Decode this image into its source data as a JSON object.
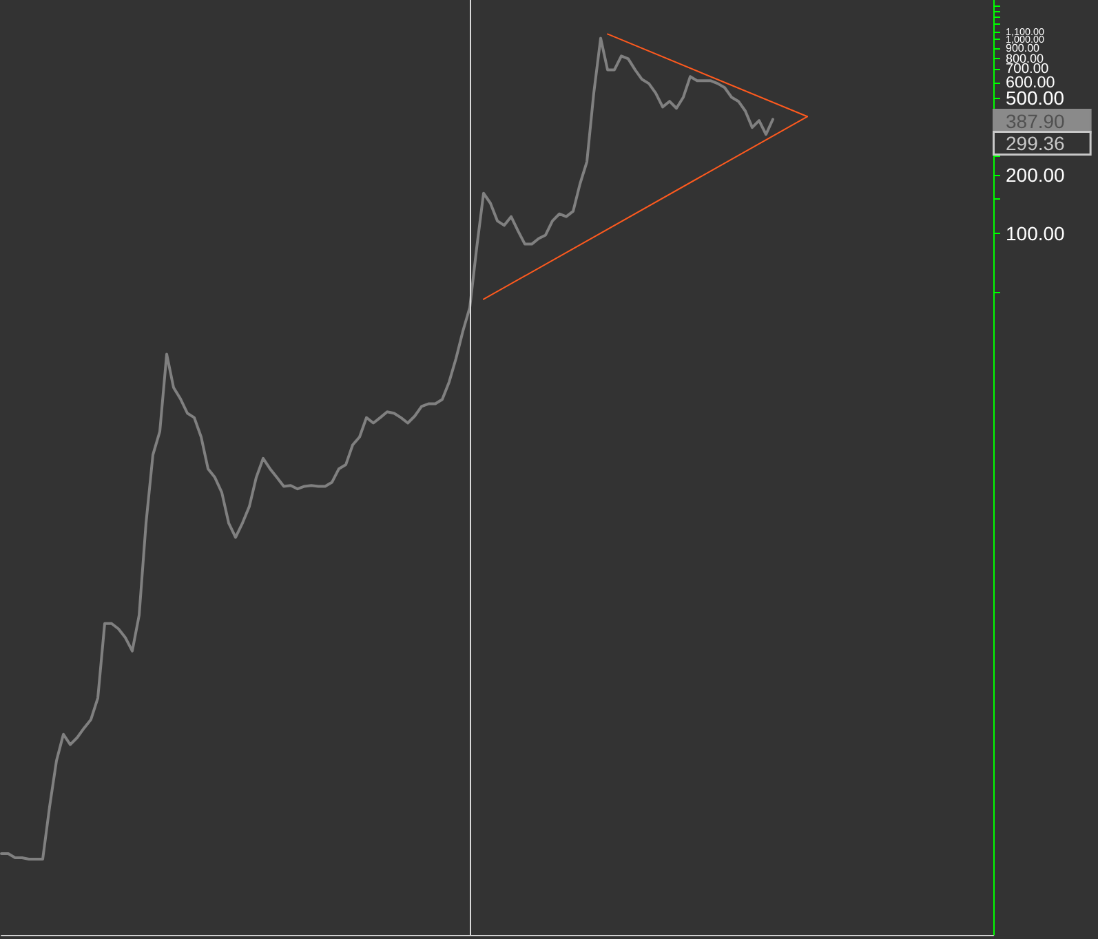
{
  "chart_data": {
    "type": "line",
    "categories": [
      null,
      null,
      null,
      null,
      null,
      null,
      null,
      null,
      null,
      null,
      null,
      null,
      null,
      null,
      null,
      null,
      null,
      null,
      null,
      null,
      null,
      null,
      null,
      null,
      null,
      null,
      null,
      null,
      null,
      null,
      null,
      null,
      null,
      null,
      null,
      null,
      null,
      null,
      null,
      null,
      null,
      null,
      null,
      null,
      null,
      null,
      null,
      null,
      null,
      null,
      null,
      null,
      null,
      null,
      null,
      null,
      null,
      null,
      null,
      null,
      null,
      null,
      null,
      null,
      null,
      null,
      null,
      null,
      null,
      null,
      null,
      null,
      null,
      null,
      null,
      null,
      null,
      null,
      null,
      null,
      null,
      null,
      null,
      null,
      null,
      null,
      null,
      null,
      null,
      null,
      null,
      null,
      null,
      null,
      null,
      null,
      null,
      null,
      null,
      null,
      null,
      null,
      null,
      null,
      null,
      null,
      null,
      null,
      null,
      null,
      null,
      null,
      null,
      null,
      null,
      null,
      null,
      null,
      null,
      null,
      null,
      null,
      null,
      null,
      null,
      null,
      null,
      null,
      null,
      null,
      null,
      null,
      null,
      null,
      null,
      null,
      null,
      null,
      null,
      null,
      null,
      null,
      null,
      null,
      null
    ],
    "series": [
      {
        "color": "#808080",
        "values": [
          0.063,
          0.063,
          0.06,
          0.06,
          0.059,
          0.059,
          0.059,
          0.11,
          0.19,
          0.26,
          0.23,
          0.25,
          0.28,
          0.31,
          0.4,
          0.97,
          0.97,
          0.91,
          0.82,
          0.7,
          1.07,
          3.2,
          7.2,
          9.5,
          23.8,
          16,
          14,
          11.8,
          11.2,
          8.9,
          6.1,
          5.5,
          4.6,
          3.2,
          2.7,
          3.2,
          3.9,
          5.5,
          6.9,
          6.1,
          5.5,
          4.95,
          5,
          4.8,
          4.95,
          5,
          4.95,
          4.95,
          5.2,
          6.1,
          6.4,
          8.1,
          8.9,
          11.2,
          10.5,
          11.2,
          12,
          11.8,
          11.2,
          10.5,
          11.4,
          12.8,
          13.2,
          13.2,
          13.9,
          17.1,
          22.6,
          31.3,
          41.4,
          84,
          161,
          143,
          116,
          110,
          122,
          103,
          88,
          88,
          94,
          98,
          116,
          126,
          122,
          130,
          180,
          234,
          529,
          1016,
          698,
          698,
          822,
          796,
          698,
          623,
          593,
          529,
          449,
          480,
          442,
          504,
          644,
          613,
          613,
          613,
          593,
          565,
          504,
          480,
          428,
          352,
          382,
          324,
          387.9,
          null,
          null,
          null,
          null,
          null,
          null,
          null,
          null,
          null,
          null,
          null,
          null,
          null,
          null,
          null,
          null,
          null,
          null,
          null,
          null,
          null,
          null,
          null,
          null,
          null,
          null,
          null,
          null,
          null,
          null,
          null,
          null
        ]
      },
      {
        "color": "#ff5a1e",
        "values": [
          null,
          null,
          null,
          null,
          null,
          null,
          null,
          null,
          null,
          null,
          null,
          null,
          null,
          null,
          null,
          null,
          null,
          null,
          null,
          null,
          null,
          null,
          null,
          null,
          null,
          null,
          null,
          null,
          null,
          null,
          null,
          null,
          null,
          null,
          null,
          null,
          null,
          null,
          null,
          null,
          null,
          null,
          null,
          null,
          null,
          null,
          null,
          null,
          null,
          null,
          null,
          null,
          null,
          null,
          null,
          null,
          null,
          null,
          null,
          null,
          null,
          null,
          null,
          null,
          null,
          null,
          null,
          null,
          null,
          null,
          45.7,
          null,
          null,
          null,
          null,
          null,
          null,
          null,
          null,
          null,
          null,
          null,
          null,
          null,
          null,
          null,
          null,
          null,
          null,
          null,
          null,
          null,
          null,
          null,
          null,
          null,
          null,
          null,
          null,
          null,
          null,
          null,
          null,
          null,
          null,
          null,
          null,
          null,
          null,
          null,
          null,
          null,
          null,
          null,
          null,
          null,
          null,
          400.7,
          null,
          null,
          null,
          null,
          null,
          null,
          null,
          null,
          null,
          null,
          null,
          null,
          null,
          null,
          null,
          null,
          null,
          null,
          null,
          null,
          null,
          null,
          null,
          null,
          null,
          null,
          null
        ]
      },
      {
        "color": "#ff5a1e",
        "values": [
          null,
          null,
          null,
          null,
          null,
          null,
          null,
          null,
          null,
          null,
          null,
          null,
          null,
          null,
          null,
          null,
          null,
          null,
          null,
          null,
          null,
          null,
          null,
          null,
          null,
          null,
          null,
          null,
          null,
          null,
          null,
          null,
          null,
          null,
          null,
          null,
          null,
          null,
          null,
          null,
          null,
          null,
          null,
          null,
          null,
          null,
          null,
          null,
          null,
          null,
          null,
          null,
          null,
          null,
          null,
          null,
          null,
          null,
          null,
          null,
          null,
          null,
          null,
          null,
          null,
          null,
          null,
          null,
          null,
          null,
          null,
          null,
          null,
          null,
          null,
          null,
          null,
          null,
          null,
          null,
          null,
          null,
          null,
          null,
          null,
          null,
          null,
          null,
          1068,
          null,
          null,
          null,
          null,
          null,
          null,
          null,
          null,
          null,
          null,
          null,
          null,
          null,
          null,
          null,
          null,
          null,
          null,
          null,
          null,
          null,
          null,
          null,
          null,
          null,
          null,
          null,
          null,
          400.7,
          null,
          null,
          null,
          null,
          null,
          null,
          null,
          null,
          null,
          null,
          null,
          null,
          null,
          null,
          null,
          null,
          null,
          null,
          null,
          null,
          null,
          null,
          null,
          null,
          null,
          null,
          null
        ]
      }
    ],
    "log": "y",
    "ylim": [
      0.024,
      1600
    ],
    "yticks": [
      {
        "value": 50,
        "label": null
      },
      {
        "value": 100,
        "label": "100.00"
      },
      {
        "value": 150,
        "label": null
      },
      {
        "value": 200,
        "label": "200.00"
      },
      {
        "value": 250,
        "label": null
      },
      {
        "value": 500,
        "label": "500.00"
      },
      {
        "value": 600,
        "label": "600.00"
      },
      {
        "value": 700,
        "label": "700.00"
      },
      {
        "value": 800,
        "label": "800.00"
      },
      {
        "value": 900,
        "label": "900.00"
      },
      {
        "value": 1000,
        "label": "1,000.00"
      },
      {
        "value": 1100,
        "label": "1,100.00"
      },
      {
        "value": 1200,
        "label": null
      },
      {
        "value": 1300,
        "label": null
      },
      {
        "value": 1400,
        "label": null
      },
      {
        "value": 1500,
        "label": null
      }
    ],
    "tick_labels": "y",
    "marker": "none",
    "annotations": [
      "387.90",
      "299.36"
    ]
  }
}
